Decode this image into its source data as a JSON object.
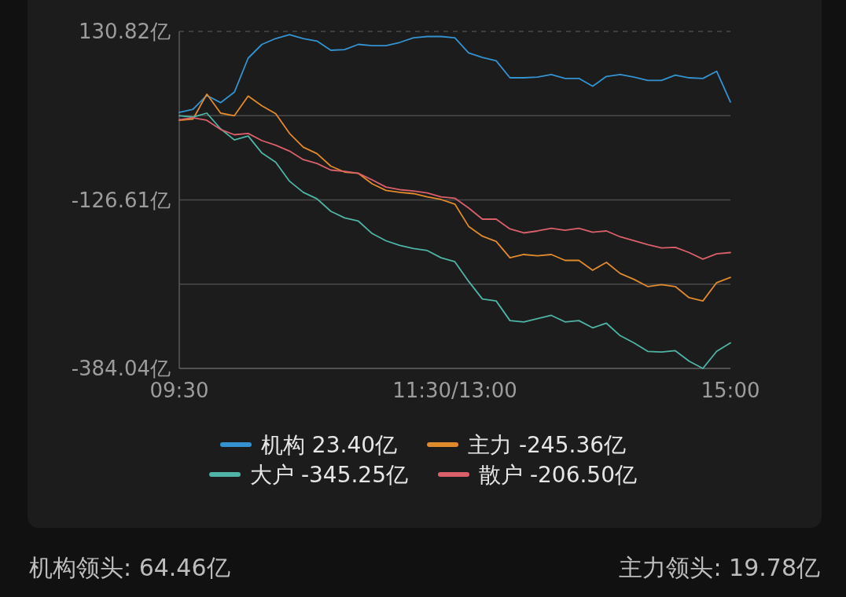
{
  "chart_data": {
    "type": "line",
    "categories": [
      "09:30",
      null,
      null,
      null,
      null,
      null,
      null,
      null,
      null,
      null,
      null,
      null,
      null,
      null,
      null,
      null,
      null,
      null,
      null,
      null,
      "11:30/13:00",
      null,
      null,
      null,
      null,
      null,
      null,
      null,
      null,
      null,
      null,
      null,
      null,
      null,
      null,
      null,
      null,
      null,
      null,
      null,
      "15:00"
    ],
    "ylim": [
      -384.04,
      130.82
    ],
    "yticks": [
      {
        "value": 130.82,
        "label": "130.82亿"
      },
      {
        "value": 2.105,
        "label": null
      },
      {
        "value": -126.61,
        "label": "-126.61亿"
      },
      {
        "value": -255.325,
        "label": null
      },
      {
        "value": -384.04,
        "label": "-384.04亿"
      }
    ],
    "grid": "y",
    "legend": "bottom",
    "series": [
      {
        "name": "机构 23.40亿",
        "color": "#3592d0",
        "values": [
          7,
          12,
          33,
          22,
          38,
          90,
          111,
          120,
          126,
          120,
          116,
          102,
          103,
          111,
          109,
          109,
          114,
          121,
          123,
          123,
          121,
          98,
          91,
          86,
          60,
          60,
          61,
          65,
          59,
          59,
          47,
          62,
          65,
          61,
          56,
          56,
          64,
          60,
          59,
          70,
          23
        ]
      },
      {
        "name": "主力 -245.36亿",
        "color": "#e08a2c",
        "values": [
          -5,
          -3,
          35,
          6,
          2,
          32,
          17,
          5,
          -25,
          -46,
          -56,
          -75,
          -84,
          -86,
          -102,
          -112,
          -115,
          -117,
          -122,
          -126,
          -133,
          -167,
          -182,
          -190,
          -215,
          -210,
          -212,
          -210,
          -219,
          -219,
          -234,
          -222,
          -239,
          -248,
          -259,
          -256,
          -259,
          -276,
          -281,
          -253,
          -245
        ]
      },
      {
        "name": "大户 -345.25亿",
        "color": "#4fb3a5",
        "values": [
          2,
          0,
          6,
          -18,
          -35,
          -29,
          -55,
          -69,
          -98,
          -115,
          -125,
          -144,
          -154,
          -159,
          -178,
          -189,
          -196,
          -201,
          -204,
          -215,
          -221,
          -251,
          -278,
          -281,
          -311,
          -313,
          -308,
          -303,
          -313,
          -311,
          -322,
          -315,
          -334,
          -345,
          -358,
          -359,
          -357,
          -373,
          -384,
          -358,
          -345
        ]
      },
      {
        "name": "散户 -206.50亿",
        "color": "#d9606a",
        "values": [
          -4,
          -1,
          -5,
          -19,
          -27,
          -25,
          -36,
          -43,
          -52,
          -65,
          -71,
          -81,
          -83,
          -86,
          -96,
          -107,
          -111,
          -113,
          -116,
          -122,
          -124,
          -139,
          -156,
          -156,
          -171,
          -177,
          -174,
          -170,
          -173,
          -170,
          -176,
          -174,
          -183,
          -189,
          -195,
          -200,
          -199,
          -207,
          -217,
          -209,
          -207
        ]
      }
    ],
    "annotations": [
      "机构领头: 64.46亿",
      "主力领头: 19.78亿"
    ]
  }
}
